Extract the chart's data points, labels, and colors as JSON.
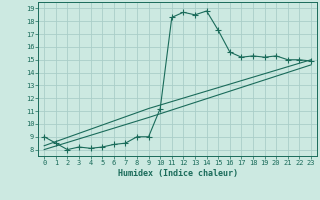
{
  "title": "",
  "xlabel": "Humidex (Indice chaleur)",
  "ylabel": "",
  "bg_color": "#cce9e1",
  "line_color": "#1a6b5a",
  "grid_color": "#aacec8",
  "xlim": [
    -0.5,
    23.5
  ],
  "ylim": [
    7.5,
    19.5
  ],
  "xticks": [
    0,
    1,
    2,
    3,
    4,
    5,
    6,
    7,
    8,
    9,
    10,
    11,
    12,
    13,
    14,
    15,
    16,
    17,
    18,
    19,
    20,
    21,
    22,
    23
  ],
  "yticks": [
    8,
    9,
    10,
    11,
    12,
    13,
    14,
    15,
    16,
    17,
    18,
    19
  ],
  "curve1_x": [
    0,
    1,
    2,
    3,
    4,
    5,
    6,
    7,
    8,
    9,
    10,
    11,
    12,
    13,
    14,
    15,
    16,
    17,
    18,
    19,
    20,
    21,
    22,
    23
  ],
  "curve1_y": [
    9.0,
    8.5,
    8.0,
    8.2,
    8.1,
    8.2,
    8.4,
    8.5,
    9.0,
    9.0,
    11.2,
    18.3,
    18.7,
    18.5,
    18.8,
    17.3,
    15.6,
    15.2,
    15.3,
    15.2,
    15.3,
    15.0,
    15.0,
    14.9
  ],
  "curve2_x": [
    0,
    9,
    23
  ],
  "curve2_y": [
    8.3,
    11.2,
    15.0
  ],
  "curve3_x": [
    0,
    9,
    23
  ],
  "curve3_y": [
    8.0,
    10.5,
    14.6
  ],
  "marker": "+",
  "markersize": 4.5
}
